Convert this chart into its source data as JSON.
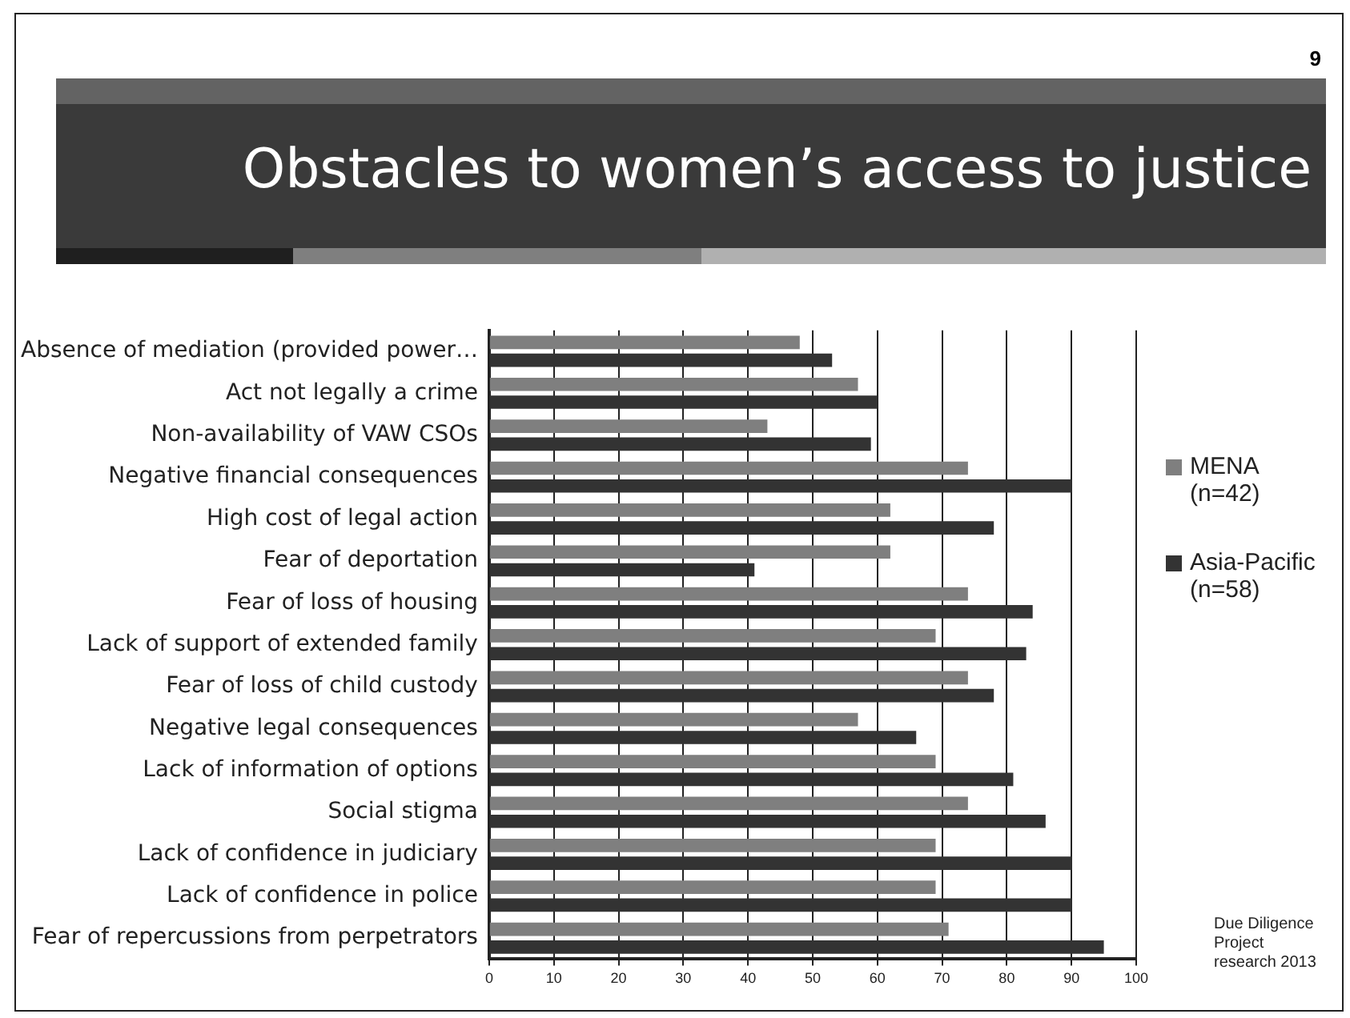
{
  "chart_data": {
    "type": "bar",
    "orientation": "horizontal",
    "title": "Obstacles to women’s access to justice",
    "categories": [
      "Absence of mediation (provided power…",
      "Act not legally a crime",
      "Non-availability of VAW CSOs",
      "Negative financial consequences",
      "High cost of legal action",
      "Fear of deportation",
      "Fear of loss of housing",
      "Lack of support of extended family",
      "Fear of loss of child custody",
      "Negative legal consequences",
      "Lack of information of options",
      "Social stigma",
      "Lack of confidence in judiciary",
      "Lack of confidence in police",
      "Fear of repercussions from perpetrators"
    ],
    "series": [
      {
        "name": "MENA (n=42)",
        "color": "#7f7f7f",
        "values": [
          48,
          57,
          43,
          74,
          62,
          62,
          74,
          69,
          74,
          57,
          69,
          74,
          69,
          69,
          71
        ]
      },
      {
        "name": "Asia-Pacific (n=58)",
        "color": "#333333",
        "values": [
          53,
          60,
          59,
          90,
          78,
          41,
          84,
          83,
          78,
          66,
          81,
          86,
          90,
          90,
          95
        ]
      }
    ],
    "xlim": [
      0,
      100
    ],
    "xticks": [
      0,
      10,
      20,
      30,
      40,
      50,
      60,
      70,
      80,
      90,
      100
    ],
    "grid": "x",
    "legend": "right",
    "annotations": [
      "9",
      "Due Diligence Project research 2013"
    ]
  }
}
